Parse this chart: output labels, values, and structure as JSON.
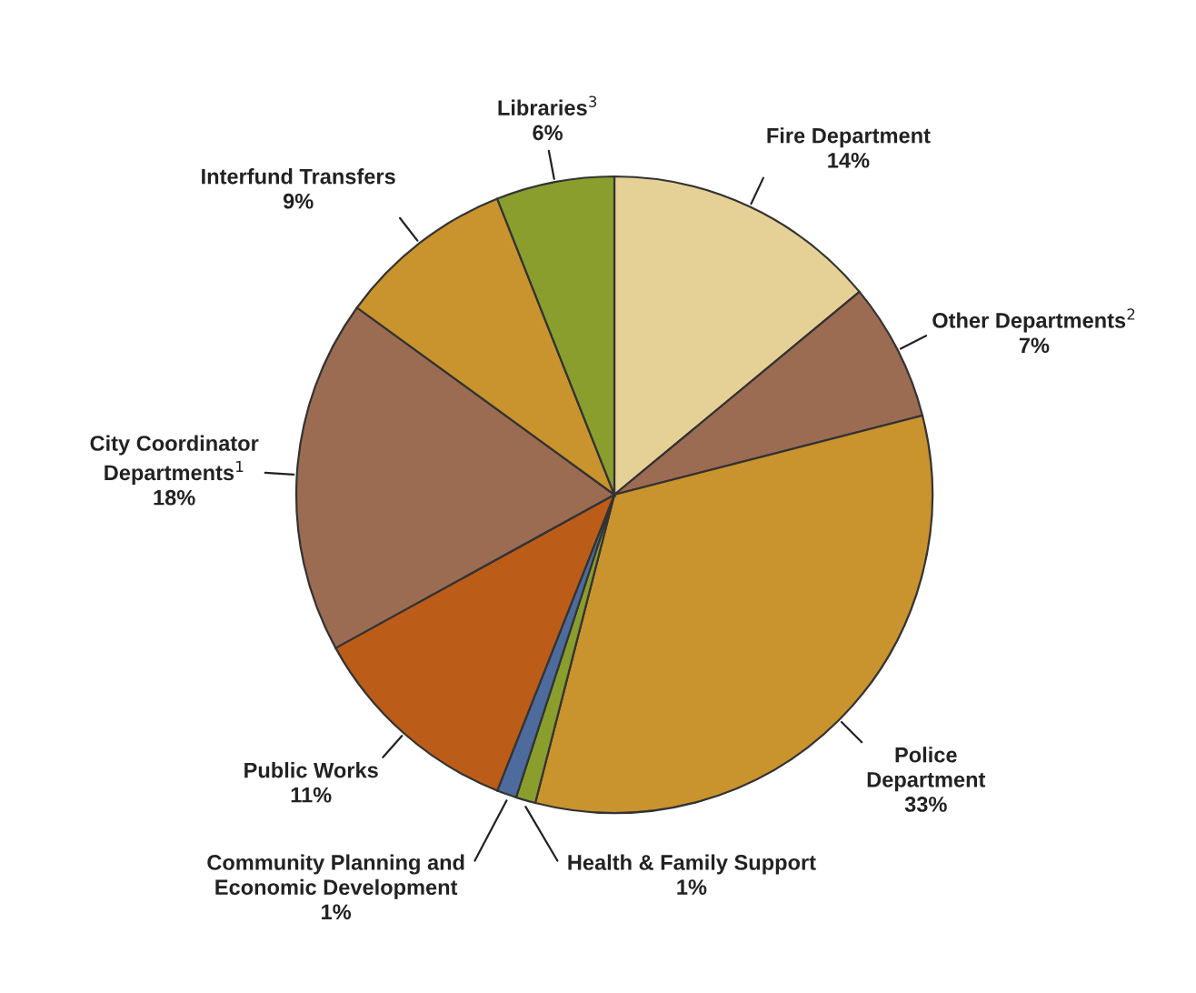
{
  "chart_data": {
    "type": "pie",
    "categories": [
      "Fire Department",
      "Other Departments$^{2}$",
      "Police\nDepartment",
      "Health & Family Support",
      "Community Planning and\nEconomic Development",
      "Public Works",
      "City Coordinator\nDepartments$^{1}$",
      "Interfund Transfers",
      "Libraries$^{3}$"
    ],
    "values": [
      14,
      7,
      33,
      1,
      1,
      11,
      18,
      9,
      6
    ],
    "value_labels": [
      "14%",
      "7%",
      "33%",
      "1%",
      "1%",
      "11%",
      "18%",
      "9%",
      "6%"
    ],
    "colors": [
      "#e5d196",
      "#9c6c52",
      "#c9932d",
      "#8a9e2e",
      "#4d6b9c",
      "#bb5c18",
      "#9c6c52",
      "#c9932d",
      "#8a9e2e"
    ]
  }
}
